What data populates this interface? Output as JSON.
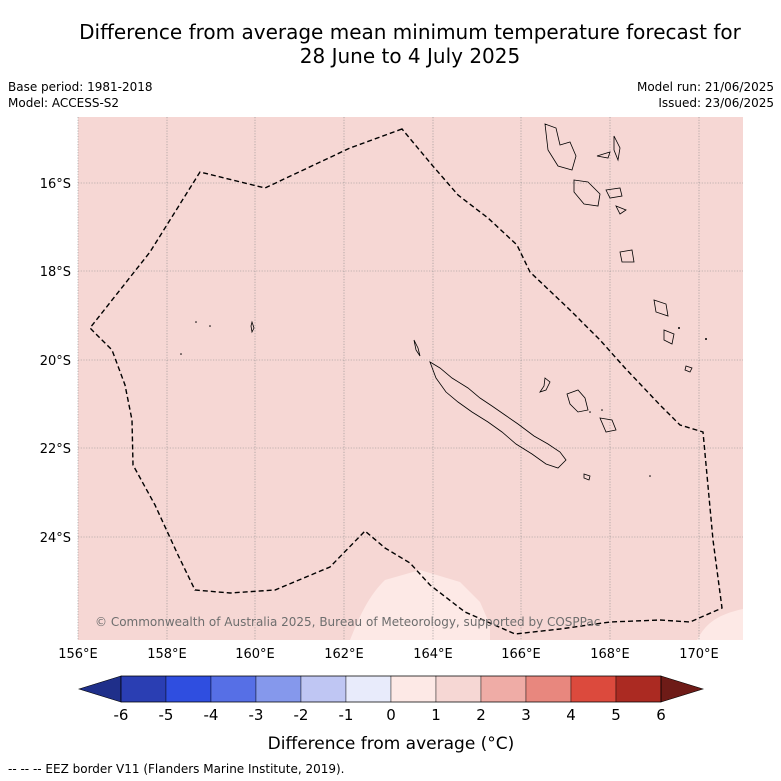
{
  "title_line1": "Difference from average mean minimum temperature forecast for",
  "title_line2": "28 June to 4 July 2025",
  "base_period": "Base period: 1981-2018",
  "model": "Model: ACCESS-S2",
  "model_run": "Model run: 21/06/2025",
  "issued": "Issued: 23/06/2025",
  "copyright": "© Commonwealth of Australia 2025, Bureau of Meteorology, supported by COSPPac",
  "lat_labels": [
    "16°S",
    "18°S",
    "20°S",
    "22°S",
    "24°S"
  ],
  "lon_labels": [
    "156°E",
    "158°E",
    "160°E",
    "162°E",
    "164°E",
    "166°E",
    "168°E",
    "170°E"
  ],
  "colorbar": {
    "label": "Difference from average (°C)",
    "ticks": [
      "-6",
      "-5",
      "-4",
      "-3",
      "-2",
      "-1",
      "0",
      "1",
      "2",
      "3",
      "4",
      "5",
      "6"
    ],
    "colors": [
      "#1f2f8a",
      "#2a3eb3",
      "#2f4ee0",
      "#566fe6",
      "#8598ec",
      "#bfc6f3",
      "#e8ebfb",
      "#fde9e6",
      "#f6d7d4",
      "#efaca6",
      "#e8877e",
      "#dc4a3d",
      "#ab2a22",
      "#6e1b17"
    ]
  },
  "map": {
    "background_anomaly_color": "#f6d7d4",
    "warmer_patch_color": "#fde9e6",
    "grid": true
  },
  "footer": "--  --  -- EEZ border V11 (Flanders Marine Institute, 2019)."
}
